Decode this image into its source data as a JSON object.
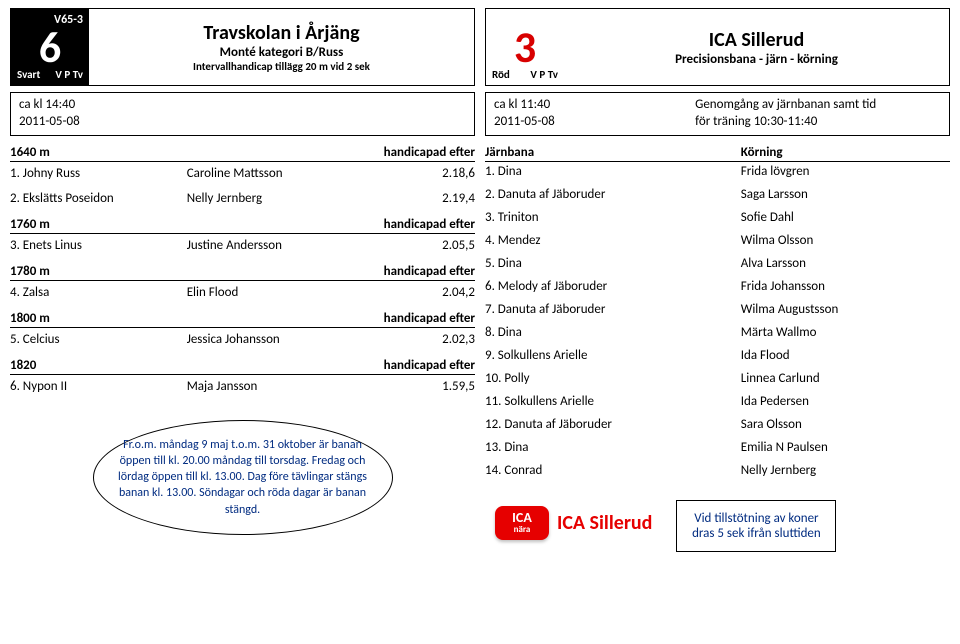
{
  "left": {
    "banner": {
      "number": "6",
      "v65": "V65-3",
      "color": "Svart",
      "vptv": "V P Tv",
      "title": "Travskolan i Årjäng",
      "sub1": "Monté kategori B/Russ",
      "sub2": "Intervallhandicap tillägg 20 m vid 2 sek"
    },
    "info": {
      "time": "ca kl 14:40",
      "date": "2011-05-08"
    },
    "sections": [
      {
        "dist": "1640 m",
        "label": "handicapad efter",
        "entries": [
          {
            "n": "1. Johny Russ",
            "d": "Caroline Mattsson",
            "t": "2.18,6"
          },
          {
            "n": "2. Ekslätts Poseidon",
            "d": "Nelly Jernberg",
            "t": "2.19,4"
          }
        ]
      },
      {
        "dist": "1760 m",
        "label": "handicapad efter",
        "entries": [
          {
            "n": "3. Enets Linus",
            "d": "Justine Andersson",
            "t": "2.05,5"
          }
        ]
      },
      {
        "dist": "1780 m",
        "label": "handicapad efter",
        "entries": [
          {
            "n": "4. Zalsa",
            "d": "Elin Flood",
            "t": "2.04,2"
          }
        ]
      },
      {
        "dist": "1800 m",
        "label": "handicapad efter",
        "entries": [
          {
            "n": "5. Celcius",
            "d": "Jessica Johansson",
            "t": "2.02,3"
          }
        ]
      },
      {
        "dist": "1820",
        "label": "handicapad efter",
        "entries": [
          {
            "n": "6. Nypon II",
            "d": "Maja Jansson",
            "t": "1.59,5"
          }
        ]
      }
    ],
    "bubble": "Fr.o.m. måndag 9 maj t.o.m. 31 oktober är banan öppen till kl. 20.00 måndag till torsdag. Fredag och lördag öppen till kl. 13.00. Dag före tävlingar stängs banan kl. 13.00. Söndagar och röda dagar är banan stängd."
  },
  "right": {
    "banner": {
      "number": "3",
      "color": "Röd",
      "vptv": "V P Tv",
      "title": "ICA Sillerud",
      "sub1": "Precisionsbana - järn - körning"
    },
    "info": {
      "time": "ca kl 11:40",
      "date": "2011-05-08",
      "desc1": "Genomgång av järnbanan samt tid",
      "desc2": "för träning 10:30-11:40"
    },
    "header": {
      "l": "Järnbana",
      "r": "Körning"
    },
    "rows": [
      {
        "l": "1. Dina",
        "r": "Frida lövgren"
      },
      {
        "l": "2. Danuta af Jäboruder",
        "r": "Saga Larsson"
      },
      {
        "l": "3. Triniton",
        "r": "Sofie Dahl"
      },
      {
        "l": "4. Mendez",
        "r": "Wilma Olsson"
      },
      {
        "l": "5. Dina",
        "r": "Alva Larsson"
      },
      {
        "l": "6. Melody af Jäboruder",
        "r": "Frida Johansson"
      },
      {
        "l": "7. Danuta af Jäboruder",
        "r": "Wilma Augustsson"
      },
      {
        "l": "8. Dina",
        "r": "Märta Wallmo"
      },
      {
        "l": "9. Solkullens Arielle",
        "r": "Ida Flood"
      },
      {
        "l": "10. Polly",
        "r": "Linnea Carlund"
      },
      {
        "l": "11. Solkullens Arielle",
        "r": "Ida Pedersen"
      },
      {
        "l": "12. Danuta af Jäboruder",
        "r": "Sara Olsson"
      },
      {
        "l": "13. Dina",
        "r": "Emilia N Paulsen"
      },
      {
        "l": "14. Conrad",
        "r": "Nelly Jernberg"
      }
    ],
    "logo": {
      "badge": "ICA",
      "nara": "nära",
      "text": "ICA Sillerud"
    },
    "note": "Vid tillstötning av koner dras 5 sek ifrån sluttiden"
  }
}
